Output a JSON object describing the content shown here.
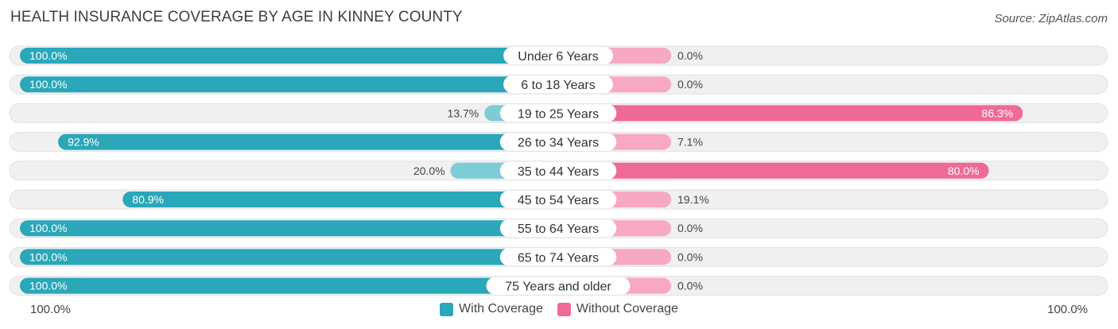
{
  "title": "HEALTH INSURANCE COVERAGE BY AGE IN KINNEY COUNTY",
  "source": "Source: ZipAtlas.com",
  "colors": {
    "with_strong": "#2aa7b9",
    "with_light": "#7ccbd6",
    "without_strong": "#f06a96",
    "without_light": "#f7a8c3",
    "track": "#f0f0f0"
  },
  "axis": {
    "left_label": "100.0%",
    "right_label": "100.0%"
  },
  "legend": {
    "with_label": "With Coverage",
    "without_label": "Without Coverage"
  },
  "chart_data": {
    "type": "bar",
    "orientation": "horizontal-diverging",
    "title": "HEALTH INSURANCE COVERAGE BY AGE IN KINNEY COUNTY",
    "xlim": [
      -100,
      100
    ],
    "categories": [
      "Under 6 Years",
      "6 to 18 Years",
      "19 to 25 Years",
      "26 to 34 Years",
      "35 to 44 Years",
      "45 to 54 Years",
      "55 to 64 Years",
      "65 to 74 Years",
      "75 Years and older"
    ],
    "series": [
      {
        "name": "With Coverage",
        "values": [
          100.0,
          100.0,
          13.7,
          92.9,
          20.0,
          80.9,
          100.0,
          100.0,
          100.0
        ],
        "labels": [
          "100.0%",
          "100.0%",
          "13.7%",
          "92.9%",
          "20.0%",
          "80.9%",
          "100.0%",
          "100.0%",
          "100.0%"
        ]
      },
      {
        "name": "Without Coverage",
        "values": [
          0.0,
          0.0,
          86.3,
          7.1,
          80.0,
          19.1,
          0.0,
          0.0,
          0.0
        ],
        "labels": [
          "0.0%",
          "0.0%",
          "86.3%",
          "7.1%",
          "80.0%",
          "19.1%",
          "0.0%",
          "0.0%",
          "0.0%"
        ]
      }
    ]
  }
}
